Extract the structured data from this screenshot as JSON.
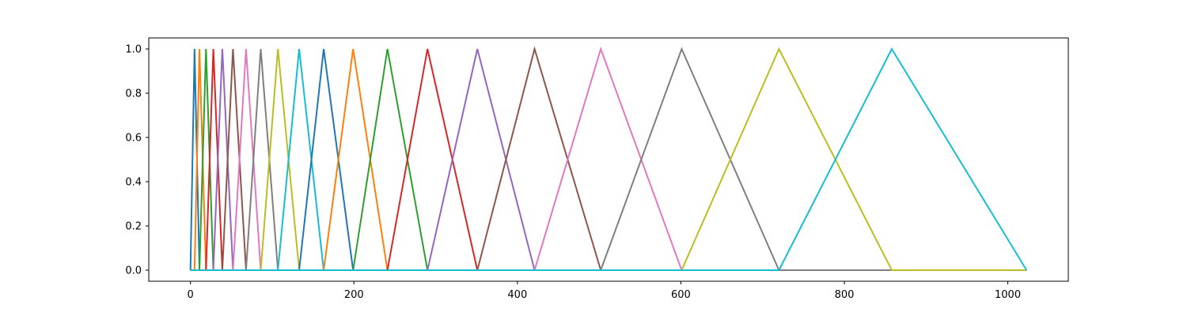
{
  "chart_data": {
    "type": "line",
    "title": "",
    "xlabel": "",
    "ylabel": "",
    "xlim": [
      -51,
      1074
    ],
    "ylim": [
      -0.05,
      1.05
    ],
    "xticks": [
      0,
      200,
      400,
      600,
      800,
      1000
    ],
    "xtick_labels": [
      "0",
      "200",
      "400",
      "600",
      "800",
      "1000"
    ],
    "yticks": [
      0.0,
      0.2,
      0.4,
      0.6,
      0.8,
      1.0
    ],
    "ytick_labels": [
      "0.0",
      "0.2",
      "0.4",
      "0.6",
      "0.8",
      "1.0"
    ],
    "x_range": [
      0,
      1023
    ],
    "grid": false,
    "legend": "none",
    "colors": [
      "#1f77b4",
      "#ff7f0e",
      "#2ca02c",
      "#d62728",
      "#9467bd",
      "#8c564b",
      "#e377c2",
      "#7f7f7f",
      "#bcbd22",
      "#17becf"
    ],
    "filter_points": [
      0,
      5,
      11,
      19,
      28,
      39,
      52,
      68,
      86,
      107,
      133,
      163,
      199,
      241,
      290,
      351,
      421,
      502,
      601,
      720,
      858,
      1023
    ],
    "series_note": "Each series i is a triangle with value 0 outside [p(i), p(i+2)], rising linearly to 1.0 at p(i+1).",
    "series": [
      {
        "start": 0,
        "peak": 5,
        "end": 11
      },
      {
        "start": 5,
        "peak": 11,
        "end": 19
      },
      {
        "start": 11,
        "peak": 19,
        "end": 28
      },
      {
        "start": 19,
        "peak": 28,
        "end": 39
      },
      {
        "start": 28,
        "peak": 39,
        "end": 52
      },
      {
        "start": 39,
        "peak": 52,
        "end": 68
      },
      {
        "start": 52,
        "peak": 68,
        "end": 86
      },
      {
        "start": 68,
        "peak": 86,
        "end": 107
      },
      {
        "start": 86,
        "peak": 107,
        "end": 133
      },
      {
        "start": 107,
        "peak": 133,
        "end": 163
      },
      {
        "start": 133,
        "peak": 163,
        "end": 199
      },
      {
        "start": 163,
        "peak": 199,
        "end": 241
      },
      {
        "start": 199,
        "peak": 241,
        "end": 290
      },
      {
        "start": 241,
        "peak": 290,
        "end": 351
      },
      {
        "start": 290,
        "peak": 351,
        "end": 421
      },
      {
        "start": 351,
        "peak": 421,
        "end": 502
      },
      {
        "start": 421,
        "peak": 502,
        "end": 601
      },
      {
        "start": 502,
        "peak": 601,
        "end": 720
      },
      {
        "start": 601,
        "peak": 720,
        "end": 858
      },
      {
        "start": 720,
        "peak": 858,
        "end": 1023
      }
    ]
  }
}
